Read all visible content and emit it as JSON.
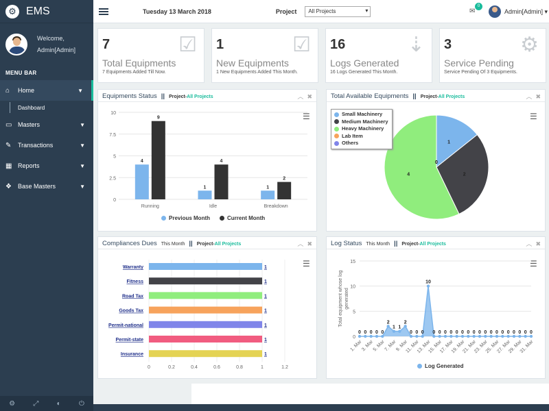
{
  "app": {
    "title": "EMS"
  },
  "user": {
    "welcome": "Welcome,",
    "name": "Admin[Admin]"
  },
  "sidebar": {
    "menubar": "MENU BAR",
    "items": [
      {
        "label": "Home"
      },
      {
        "label": "Dashboard"
      },
      {
        "label": "Masters"
      },
      {
        "label": "Transactions"
      },
      {
        "label": "Reports"
      },
      {
        "label": "Base Masters"
      }
    ]
  },
  "topbar": {
    "date": "Tuesday 13 March 2018",
    "project_label": "Project",
    "project_value": "All Projects",
    "mail_count": "0",
    "user": "Admin[Admin]"
  },
  "stats": [
    {
      "num": "7",
      "title": "Total Equipments",
      "desc": "7 Equipments Added Till Now."
    },
    {
      "num": "1",
      "title": "New Equipments",
      "desc": "1 New Equipments Added This Month."
    },
    {
      "num": "16",
      "title": "Logs Generated",
      "desc": "16 Logs Generated This Month."
    },
    {
      "num": "3",
      "title": "Service Pending",
      "desc": "Service Pending Of 3 Equipments."
    }
  ],
  "panels": {
    "equip_status": {
      "title": "Equipments Status",
      "sep": "||",
      "project_prefix": "Project-",
      "project": "All Projects"
    },
    "total_avail": {
      "title": "Total Available Equipments",
      "sep": "||",
      "project_prefix": "Project-",
      "project": "All Projects"
    },
    "compliances": {
      "title": "Compliances Dues",
      "period": "This Month",
      "sep": "||",
      "project_prefix": "Project-",
      "project": "All Projects"
    },
    "log_status": {
      "title": "Log Status",
      "period": "This Month",
      "sep": "||",
      "project_prefix": "Project-",
      "project": "All Projects"
    }
  },
  "chart_data": [
    {
      "type": "bar",
      "categories": [
        "Running",
        "Idle",
        "Breakdown"
      ],
      "series": [
        {
          "name": "Previous Month",
          "values": [
            4,
            1,
            1
          ],
          "color": "#7cb5ec"
        },
        {
          "name": "Current Month",
          "values": [
            9,
            4,
            2
          ],
          "color": "#333333"
        }
      ],
      "yticks": [
        "0",
        "2.5",
        "5",
        "7.5",
        "10"
      ],
      "ylim": [
        0,
        10
      ],
      "legend": "bottom"
    },
    {
      "type": "pie",
      "slices": [
        {
          "name": "Small Machinery",
          "value": 1,
          "color": "#7cb5ec"
        },
        {
          "name": "Medium Machinery",
          "value": 2,
          "color": "#434348"
        },
        {
          "name": "Heavy Machinery",
          "value": 4,
          "color": "#90ed7d"
        },
        {
          "name": "Lab Item",
          "value": 0,
          "color": "#f7a35c"
        },
        {
          "name": "Others",
          "value": 0,
          "color": "#8085e9"
        }
      ],
      "legend": "top-left"
    },
    {
      "type": "bar",
      "orientation": "horizontal",
      "categories": [
        "Warranty",
        "Fitness",
        "Road Tax",
        "Goods Tax",
        "Permit-national",
        "Permit-state",
        "Insurance"
      ],
      "values": [
        1,
        1,
        1,
        1,
        1,
        1,
        1
      ],
      "colors": [
        "#7cb5ec",
        "#434348",
        "#90ed7d",
        "#f7a35c",
        "#8085e9",
        "#f15c80",
        "#e4d354"
      ],
      "xticks": [
        "0",
        "0.2",
        "0.4",
        "0.6",
        "0.8",
        "1",
        "1.2"
      ],
      "xlim": [
        0,
        1.2
      ]
    },
    {
      "type": "area",
      "x": [
        "1. Mar",
        "2. Mar",
        "3. Mar",
        "4. Mar",
        "5. Mar",
        "6. Mar",
        "7. Mar",
        "8. Mar",
        "9. Mar",
        "10. Mar",
        "11. Mar",
        "12. Mar",
        "13. Mar",
        "14. Mar",
        "15. Mar",
        "16. Mar",
        "17. Mar",
        "18. Mar",
        "19. Mar",
        "20. Mar",
        "21. Mar",
        "22. Mar",
        "23. Mar",
        "24. Mar",
        "25. Mar",
        "26. Mar",
        "27. Mar",
        "28. Mar",
        "29. Mar",
        "30. Mar",
        "31. Mar"
      ],
      "xticks": [
        "1. Mar",
        "3. Mar",
        "5. Mar",
        "7. Mar",
        "9. Mar",
        "11. Mar",
        "13. Mar",
        "15. Mar",
        "17. Mar",
        "19. Mar",
        "21. Mar",
        "23. Mar",
        "25. Mar",
        "27. Mar",
        "29. Mar",
        "31. Mar"
      ],
      "values": [
        0,
        0,
        0,
        0,
        0,
        2,
        1,
        1,
        2,
        0,
        0,
        0,
        10,
        0,
        0,
        0,
        0,
        0,
        0,
        0,
        0,
        0,
        0,
        0,
        0,
        0,
        0,
        0,
        0,
        0,
        0
      ],
      "ylabel": "Total equipment whose log generated",
      "yticks": [
        "0",
        "5",
        "10",
        "15"
      ],
      "ylim": [
        0,
        15
      ],
      "series_name": "Log Generated",
      "color": "#7cb5ec"
    }
  ]
}
